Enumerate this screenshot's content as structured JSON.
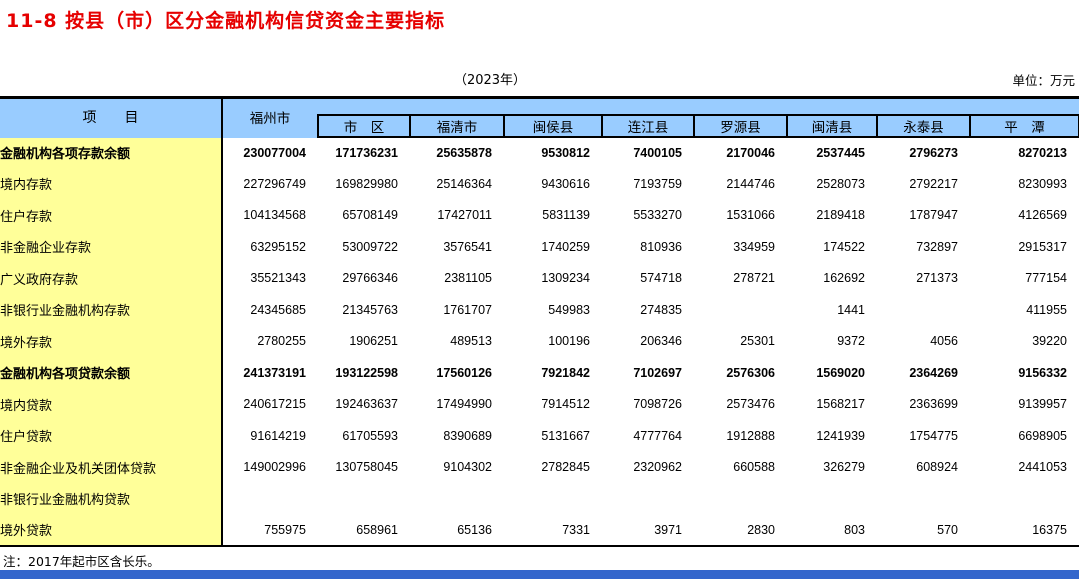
{
  "page": {
    "title": "11-8 按县（市）区分金融机构信贷资金主要指标",
    "year_label": "（2023年）",
    "unit_label": "单位：万元",
    "note": "注：2017年起市区含长乐。"
  },
  "colors": {
    "title_red": "#e60000",
    "header_bg": "#99ccff",
    "label_bg": "#ffff99",
    "bottom_bar_blue": "#3366cc"
  },
  "table": {
    "item_header": "项　　目",
    "columns": [
      "福州市",
      "市　区",
      "福清市",
      "闽侯县",
      "连江县",
      "罗源县",
      "闽清县",
      "永泰县",
      "平　潭"
    ],
    "rows": [
      {
        "label": "金融机构各项存款余额",
        "indent": 0,
        "bold": true,
        "values": [
          "230077004",
          "171736231",
          "25635878",
          "9530812",
          "7400105",
          "2170046",
          "2537445",
          "2796273",
          "8270213"
        ]
      },
      {
        "label": "境内存款",
        "indent": 1,
        "bold": false,
        "values": [
          "227296749",
          "169829980",
          "25146364",
          "9430616",
          "7193759",
          "2144746",
          "2528073",
          "2792217",
          "8230993"
        ]
      },
      {
        "label": "住户存款",
        "indent": 2,
        "bold": false,
        "values": [
          "104134568",
          "65708149",
          "17427011",
          "5831139",
          "5533270",
          "1531066",
          "2189418",
          "1787947",
          "4126569"
        ]
      },
      {
        "label": "非金融企业存款",
        "indent": 2,
        "bold": false,
        "values": [
          "63295152",
          "53009722",
          "3576541",
          "1740259",
          "810936",
          "334959",
          "174522",
          "732897",
          "2915317"
        ]
      },
      {
        "label": "广义政府存款",
        "indent": 2,
        "bold": false,
        "values": [
          "35521343",
          "29766346",
          "2381105",
          "1309234",
          "574718",
          "278721",
          "162692",
          "271373",
          "777154"
        ]
      },
      {
        "label": "非银行业金融机构存款",
        "indent": 2,
        "bold": false,
        "values": [
          "24345685",
          "21345763",
          "1761707",
          "549983",
          "274835",
          "",
          "1441",
          "",
          "411955"
        ]
      },
      {
        "label": "境外存款",
        "indent": 1,
        "bold": false,
        "values": [
          "2780255",
          "1906251",
          "489513",
          "100196",
          "206346",
          "25301",
          "9372",
          "4056",
          "39220"
        ]
      },
      {
        "label": "金融机构各项贷款余额",
        "indent": 0,
        "bold": true,
        "values": [
          "241373191",
          "193122598",
          "17560126",
          "7921842",
          "7102697",
          "2576306",
          "1569020",
          "2364269",
          "9156332"
        ]
      },
      {
        "label": "境内贷款",
        "indent": 1,
        "bold": false,
        "values": [
          "240617215",
          "192463637",
          "17494990",
          "7914512",
          "7098726",
          "2573476",
          "1568217",
          "2363699",
          "9139957"
        ]
      },
      {
        "label": "住户贷款",
        "indent": 2,
        "bold": false,
        "values": [
          "91614219",
          "61705593",
          "8390689",
          "5131667",
          "4777764",
          "1912888",
          "1241939",
          "1754775",
          "6698905"
        ]
      },
      {
        "label": "非金融企业及机关团体贷款",
        "indent": 2,
        "bold": false,
        "values": [
          "149002996",
          "130758045",
          "9104302",
          "2782845",
          "2320962",
          "660588",
          "326279",
          "608924",
          "2441053"
        ]
      },
      {
        "label": "非银行业金融机构贷款",
        "indent": 2,
        "bold": false,
        "values": [
          "",
          "",
          "",
          "",
          "",
          "",
          "",
          "",
          ""
        ]
      },
      {
        "label": "境外贷款",
        "indent": 1,
        "bold": false,
        "values": [
          "755975",
          "658961",
          "65136",
          "7331",
          "3971",
          "2830",
          "803",
          "570",
          "16375"
        ]
      }
    ]
  }
}
